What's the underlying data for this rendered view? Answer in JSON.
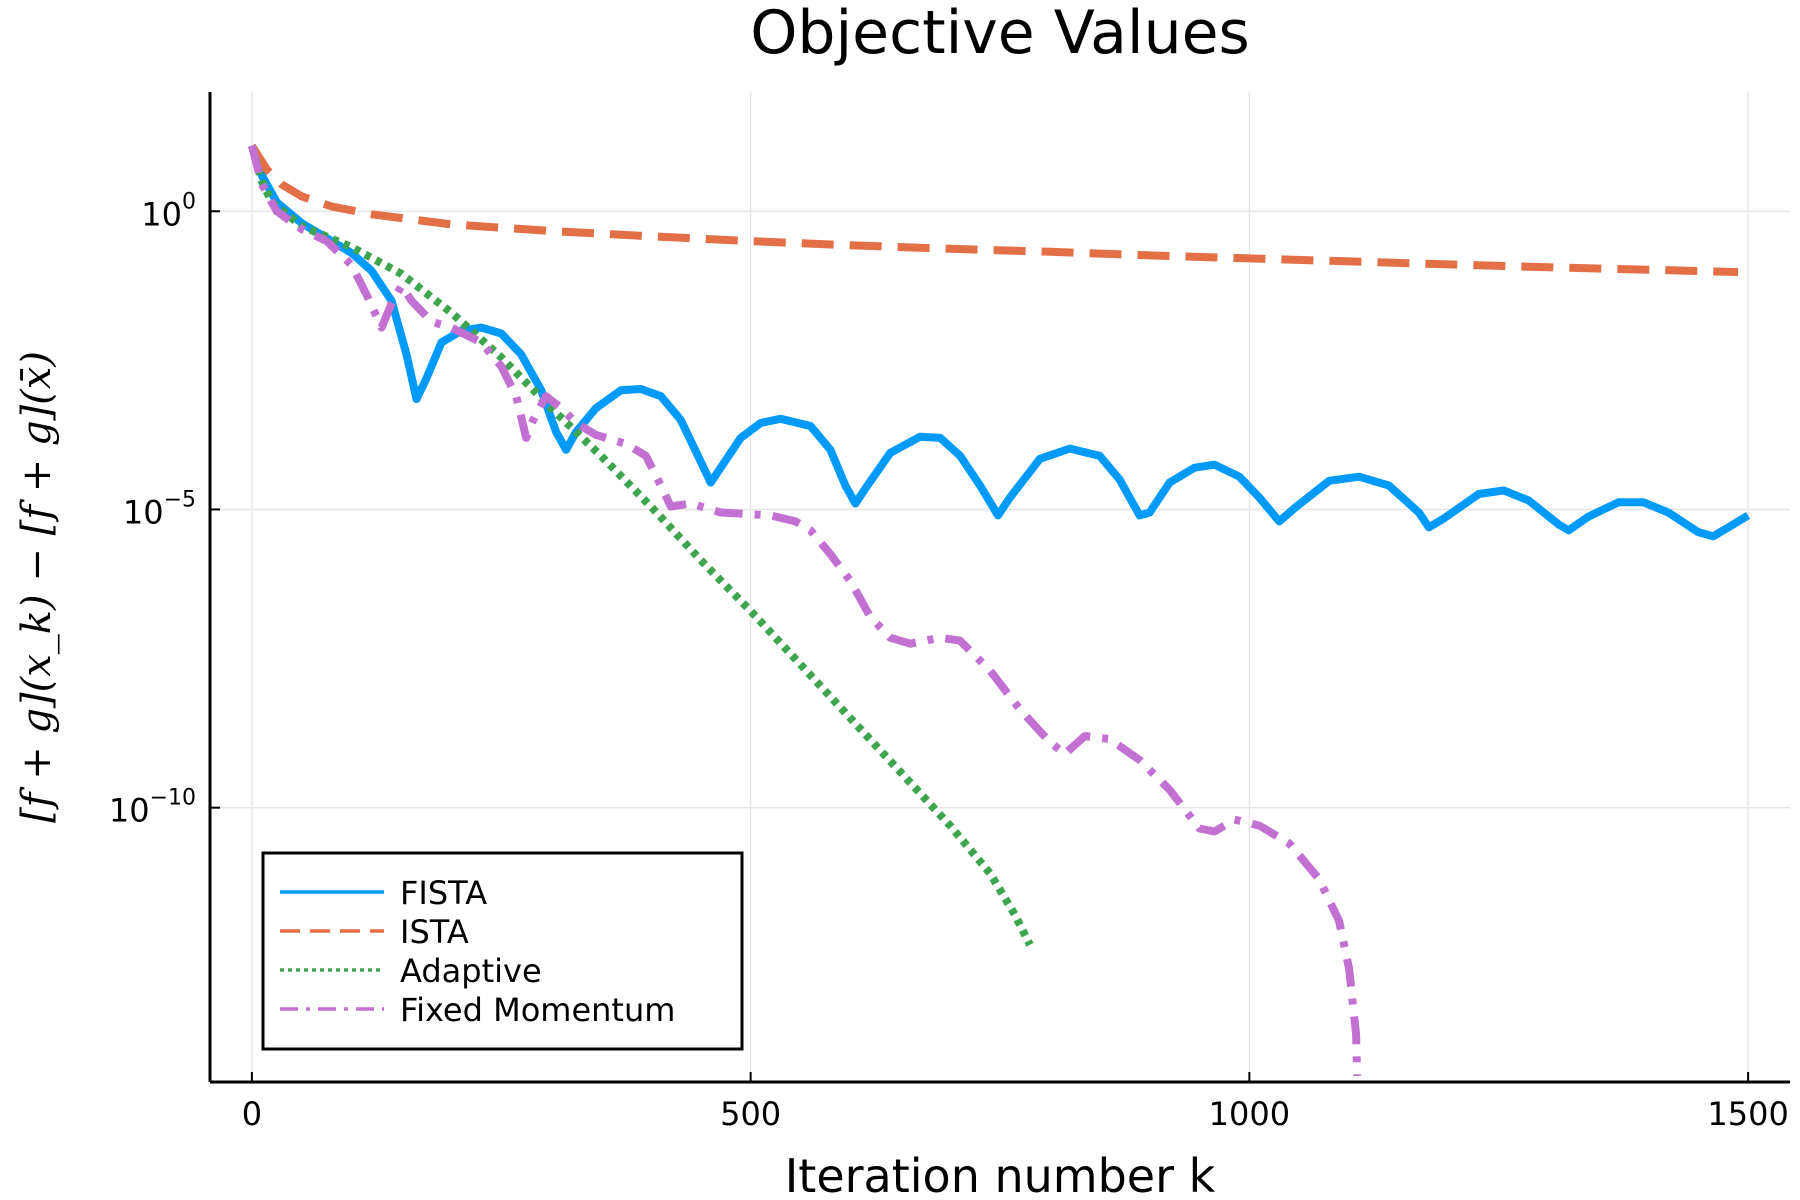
{
  "chart_data": {
    "type": "line",
    "title": "Objective Values",
    "xlabel": "Iteration number k",
    "ylabel": "[f + g](x_k) − [f + g](x̄)",
    "xlim": [
      -42,
      1542
    ],
    "ylim_log10": [
      -14.6,
      2.0
    ],
    "y_scale": "log",
    "grid": true,
    "legend_position": "bottom-left",
    "xticks": [
      {
        "value": 0,
        "label": "0"
      },
      {
        "value": 500,
        "label": "500"
      },
      {
        "value": 1000,
        "label": "1000"
      },
      {
        "value": 1500,
        "label": "1500"
      }
    ],
    "yticks": [
      {
        "exp": 0,
        "base": "10",
        "power": "0"
      },
      {
        "exp": -5,
        "base": "10",
        "power": "−5"
      },
      {
        "exp": -10,
        "base": "10",
        "power": "−10"
      }
    ],
    "series": [
      {
        "name": "FISTA",
        "color": "#009AFA",
        "dash": "solid",
        "points": [
          [
            0,
            1.1
          ],
          [
            10,
            0.6
          ],
          [
            25,
            0.15
          ],
          [
            50,
            -0.2
          ],
          [
            75,
            -0.45
          ],
          [
            100,
            -0.7
          ],
          [
            120,
            -1.0
          ],
          [
            140,
            -1.5
          ],
          [
            155,
            -2.4
          ],
          [
            165,
            -3.15
          ],
          [
            175,
            -2.8
          ],
          [
            190,
            -2.2
          ],
          [
            210,
            -2.0
          ],
          [
            230,
            -1.95
          ],
          [
            250,
            -2.05
          ],
          [
            270,
            -2.4
          ],
          [
            290,
            -3.0
          ],
          [
            305,
            -3.7
          ],
          [
            315,
            -4.0
          ],
          [
            325,
            -3.7
          ],
          [
            345,
            -3.3
          ],
          [
            370,
            -3.0
          ],
          [
            390,
            -2.98
          ],
          [
            410,
            -3.1
          ],
          [
            430,
            -3.5
          ],
          [
            450,
            -4.2
          ],
          [
            460,
            -4.55
          ],
          [
            470,
            -4.3
          ],
          [
            490,
            -3.8
          ],
          [
            510,
            -3.55
          ],
          [
            530,
            -3.48
          ],
          [
            560,
            -3.6
          ],
          [
            580,
            -4.0
          ],
          [
            595,
            -4.6
          ],
          [
            605,
            -4.9
          ],
          [
            615,
            -4.65
          ],
          [
            640,
            -4.05
          ],
          [
            670,
            -3.78
          ],
          [
            690,
            -3.8
          ],
          [
            710,
            -4.1
          ],
          [
            730,
            -4.6
          ],
          [
            748,
            -5.1
          ],
          [
            760,
            -4.8
          ],
          [
            790,
            -4.15
          ],
          [
            820,
            -3.98
          ],
          [
            850,
            -4.1
          ],
          [
            870,
            -4.5
          ],
          [
            890,
            -5.1
          ],
          [
            900,
            -5.05
          ],
          [
            920,
            -4.55
          ],
          [
            945,
            -4.3
          ],
          [
            965,
            -4.25
          ],
          [
            990,
            -4.45
          ],
          [
            1010,
            -4.8
          ],
          [
            1030,
            -5.2
          ],
          [
            1045,
            -4.98
          ],
          [
            1080,
            -4.52
          ],
          [
            1110,
            -4.45
          ],
          [
            1140,
            -4.6
          ],
          [
            1170,
            -5.05
          ],
          [
            1180,
            -5.3
          ],
          [
            1195,
            -5.15
          ],
          [
            1230,
            -4.74
          ],
          [
            1255,
            -4.68
          ],
          [
            1280,
            -4.85
          ],
          [
            1310,
            -5.25
          ],
          [
            1320,
            -5.35
          ],
          [
            1340,
            -5.12
          ],
          [
            1370,
            -4.88
          ],
          [
            1395,
            -4.88
          ],
          [
            1420,
            -5.05
          ],
          [
            1450,
            -5.38
          ],
          [
            1465,
            -5.45
          ],
          [
            1480,
            -5.3
          ],
          [
            1500,
            -5.1
          ]
        ]
      },
      {
        "name": "ISTA",
        "color": "#E26F46",
        "dash": "long-dash",
        "points": [
          [
            0,
            1.1
          ],
          [
            15,
            0.7
          ],
          [
            30,
            0.45
          ],
          [
            50,
            0.25
          ],
          [
            80,
            0.08
          ],
          [
            120,
            -0.05
          ],
          [
            200,
            -0.22
          ],
          [
            300,
            -0.33
          ],
          [
            400,
            -0.42
          ],
          [
            500,
            -0.5
          ],
          [
            600,
            -0.57
          ],
          [
            700,
            -0.63
          ],
          [
            800,
            -0.68
          ],
          [
            900,
            -0.74
          ],
          [
            1000,
            -0.79
          ],
          [
            1100,
            -0.84
          ],
          [
            1200,
            -0.89
          ],
          [
            1300,
            -0.94
          ],
          [
            1400,
            -0.98
          ],
          [
            1490,
            -1.02
          ]
        ]
      },
      {
        "name": "Adaptive",
        "color": "#3EA44E",
        "dash": "dotted",
        "points": [
          [
            0,
            1.1
          ],
          [
            10,
            0.5
          ],
          [
            20,
            0.15
          ],
          [
            50,
            -0.25
          ],
          [
            100,
            -0.6
          ],
          [
            150,
            -1.05
          ],
          [
            200,
            -1.7
          ],
          [
            250,
            -2.45
          ],
          [
            300,
            -3.3
          ],
          [
            350,
            -4.1
          ],
          [
            400,
            -4.95
          ],
          [
            450,
            -5.85
          ],
          [
            500,
            -6.7
          ],
          [
            550,
            -7.6
          ],
          [
            600,
            -8.5
          ],
          [
            650,
            -9.4
          ],
          [
            700,
            -10.3
          ],
          [
            740,
            -11.1
          ],
          [
            765,
            -11.8
          ],
          [
            780,
            -12.3
          ]
        ]
      },
      {
        "name": "Fixed Momentum",
        "color": "#C271D2",
        "dash": "dash-dot",
        "points": [
          [
            0,
            1.1
          ],
          [
            10,
            0.45
          ],
          [
            25,
            0.0
          ],
          [
            50,
            -0.3
          ],
          [
            75,
            -0.5
          ],
          [
            100,
            -0.9
          ],
          [
            115,
            -1.4
          ],
          [
            130,
            -1.95
          ],
          [
            140,
            -1.55
          ],
          [
            150,
            -1.25
          ],
          [
            160,
            -1.5
          ],
          [
            180,
            -1.85
          ],
          [
            200,
            -1.95
          ],
          [
            230,
            -2.2
          ],
          [
            250,
            -2.6
          ],
          [
            265,
            -3.1
          ],
          [
            275,
            -3.8
          ],
          [
            282,
            -3.5
          ],
          [
            295,
            -3.1
          ],
          [
            310,
            -3.3
          ],
          [
            325,
            -3.55
          ],
          [
            345,
            -3.75
          ],
          [
            375,
            -3.9
          ],
          [
            395,
            -4.1
          ],
          [
            410,
            -4.6
          ],
          [
            420,
            -4.95
          ],
          [
            440,
            -4.9
          ],
          [
            470,
            -5.05
          ],
          [
            520,
            -5.1
          ],
          [
            545,
            -5.2
          ],
          [
            560,
            -5.35
          ],
          [
            580,
            -5.75
          ],
          [
            600,
            -6.2
          ],
          [
            620,
            -6.8
          ],
          [
            640,
            -7.15
          ],
          [
            660,
            -7.25
          ],
          [
            690,
            -7.15
          ],
          [
            710,
            -7.2
          ],
          [
            740,
            -7.7
          ],
          [
            770,
            -8.35
          ],
          [
            800,
            -8.9
          ],
          [
            815,
            -9.1
          ],
          [
            835,
            -8.8
          ],
          [
            860,
            -8.85
          ],
          [
            890,
            -9.2
          ],
          [
            920,
            -9.7
          ],
          [
            950,
            -10.35
          ],
          [
            965,
            -10.4
          ],
          [
            985,
            -10.2
          ],
          [
            1010,
            -10.3
          ],
          [
            1040,
            -10.6
          ],
          [
            1070,
            -11.2
          ],
          [
            1090,
            -11.9
          ],
          [
            1100,
            -12.7
          ],
          [
            1107,
            -13.8
          ],
          [
            1108,
            -14.5
          ]
        ]
      }
    ]
  }
}
